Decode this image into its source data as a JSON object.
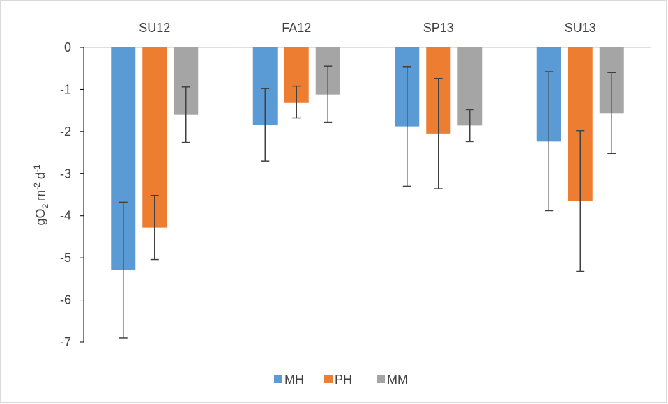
{
  "chart_data": {
    "type": "bar",
    "categories": [
      "SU12",
      "FA12",
      "SP13",
      "SU13"
    ],
    "category_axis_position": "top",
    "ylabel": {
      "base": "gO",
      "sub1": "2",
      "mid": " m",
      "sup1": "-2",
      "mid2": " d",
      "sup2": "-1"
    },
    "ylim": [
      -7,
      0
    ],
    "yticks": [
      0,
      -1,
      -2,
      -3,
      -4,
      -5,
      -6,
      -7
    ],
    "grid": false,
    "legend_position": "bottom",
    "series": [
      {
        "name": "MH",
        "color": "#5b9bd5",
        "values": [
          -5.28,
          -1.84,
          -1.88,
          -2.24
        ],
        "err_high": [
          -3.68,
          -0.98,
          -0.46,
          -0.58
        ],
        "err_low": [
          -6.9,
          -2.7,
          -3.3,
          -3.88
        ]
      },
      {
        "name": "PH",
        "color": "#ed7d31",
        "values": [
          -4.28,
          -1.32,
          -2.05,
          -3.65
        ],
        "err_high": [
          -3.52,
          -0.92,
          -0.74,
          -1.98
        ],
        "err_low": [
          -5.04,
          -1.68,
          -3.36,
          -5.32
        ]
      },
      {
        "name": "MM",
        "color": "#a5a5a5",
        "values": [
          -1.6,
          -1.12,
          -1.86,
          -1.56
        ],
        "err_high": [
          -0.94,
          -0.45,
          -1.48,
          -0.6
        ],
        "err_low": [
          -2.26,
          -1.78,
          -2.24,
          -2.52
        ]
      }
    ]
  }
}
